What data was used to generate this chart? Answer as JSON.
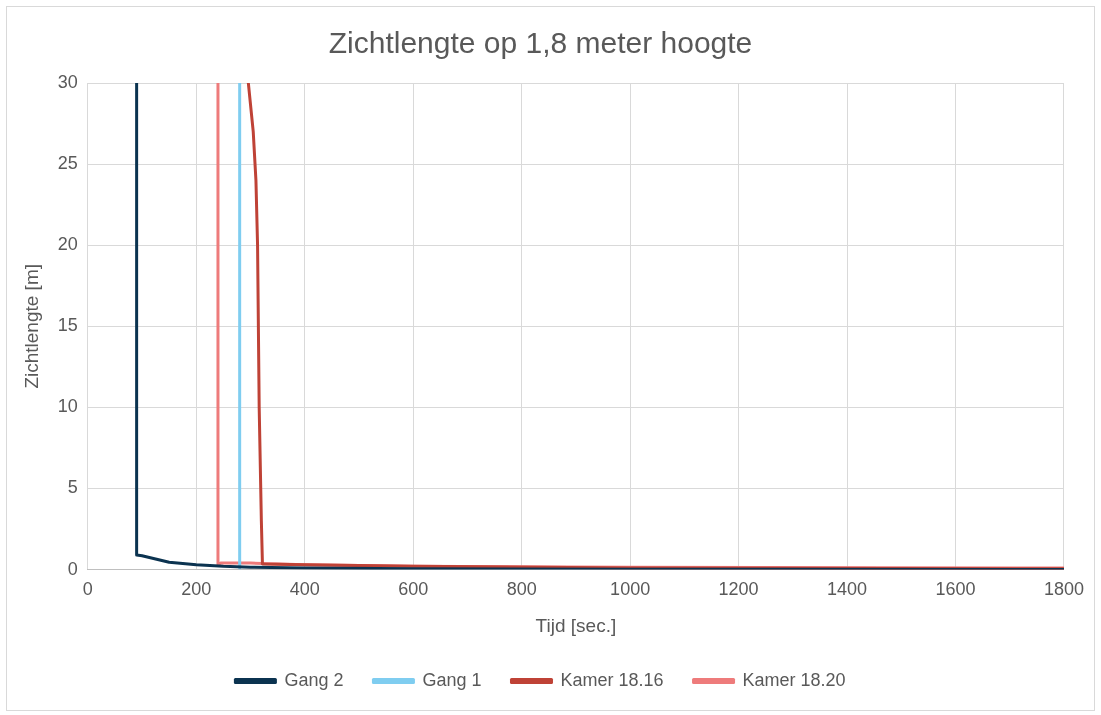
{
  "chart_data": {
    "type": "line",
    "title": "Zichtlengte op 1,8 meter hoogte",
    "xlabel": "Tijd [sec.]",
    "ylabel": "Zichtlengte [m]",
    "xlim": [
      0,
      1800
    ],
    "xticks": [
      0,
      200,
      400,
      600,
      800,
      1000,
      1200,
      1400,
      1600,
      1800
    ],
    "ylim": [
      0,
      30
    ],
    "yticks": [
      0,
      5,
      10,
      15,
      20,
      25,
      30
    ],
    "grid": true,
    "legend": "bottom",
    "marker": "none",
    "line_style": "solid",
    "series": [
      {
        "name": "Gang 2",
        "color": "#0b3350",
        "x": [
          90,
          90,
          100,
          150,
          200,
          250,
          300,
          400,
          600,
          1000,
          1800
        ],
        "values": [
          30,
          0.9,
          0.85,
          0.45,
          0.3,
          0.2,
          0.15,
          0.1,
          0.05,
          0.02,
          0.01
        ]
      },
      {
        "name": "Gang 1",
        "color": "#7fcdf0",
        "x": [
          280,
          280
        ],
        "values": [
          30,
          0.1
        ]
      },
      {
        "name": "Kamer 18.16",
        "color": "#bf4236",
        "x": [
          296,
          305,
          310,
          313,
          316,
          320,
          322,
          400,
          600,
          1000,
          1800
        ],
        "values": [
          30,
          27,
          24,
          20,
          10,
          3,
          0.35,
          0.3,
          0.2,
          0.1,
          0.05
        ]
      },
      {
        "name": "Kamer 18.20",
        "color": "#ee7b7b",
        "x": [
          240,
          240,
          245,
          300,
          400,
          600,
          1000,
          1800
        ],
        "values": [
          30,
          0.3,
          0.4,
          0.4,
          0.3,
          0.2,
          0.15,
          0.1
        ]
      }
    ]
  }
}
